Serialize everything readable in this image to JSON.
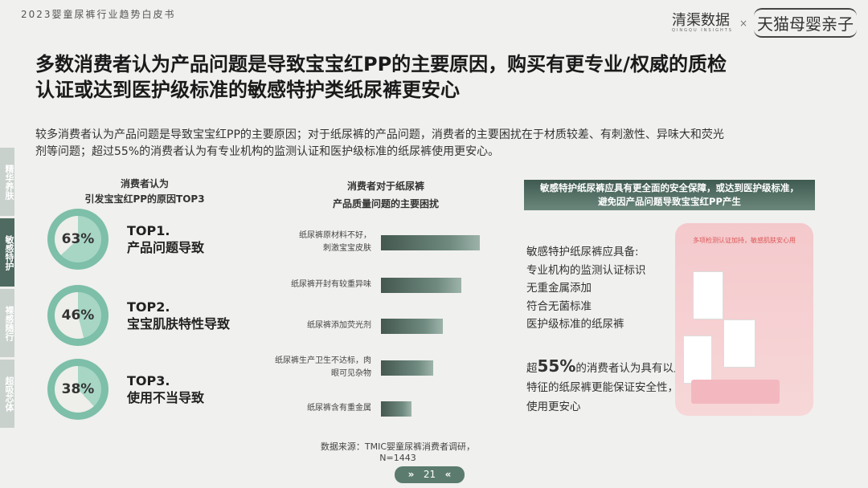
{
  "header": {
    "doc_title": "2023婴童尿裤行业趋势白皮书",
    "logo_left": "清渠数据",
    "logo_left_sub": "QINGQU INSIGHTS",
    "logo_sep": "×",
    "logo_right": "天猫母婴亲子"
  },
  "title": {
    "line1": "多数消费者认为产品问题是导致宝宝红PP的主要原因，购买有更专业/权威的质检",
    "line2": "认证或达到医护级标准的敏感特护类纸尿裤更安心"
  },
  "intro": {
    "line1": "较多消费者认为产品问题是导致宝宝红PP的主要原因；对于纸尿裤的产品问题，消费者的主要困扰在于材质较差、有刺激性、异味大和荧光",
    "line2": "剂等问题；超过55%的消费者认为有专业机构的监测认证和医护级标准的纸尿裤使用更安心。"
  },
  "side_tabs": [
    {
      "label": "精华养肤",
      "active": false
    },
    {
      "label": "敏感特护",
      "active": true
    },
    {
      "label": "裸感随行",
      "active": false
    },
    {
      "label": "超吸芯体",
      "active": false
    }
  ],
  "top3": {
    "title_line1": "消费者认为",
    "title_line2": "引发宝宝红PP的原因TOP3",
    "items": [
      {
        "pct": "63%",
        "value": 63,
        "rank": "TOP1.",
        "label": "产品问题导致"
      },
      {
        "pct": "46%",
        "value": 46,
        "rank": "TOP2.",
        "label": "宝宝肌肤特性导致"
      },
      {
        "pct": "38%",
        "value": 38,
        "rank": "TOP3.",
        "label": "使用不当导致"
      }
    ],
    "ring_color": "#7dbfa9"
  },
  "chart_data": {
    "type": "bar",
    "orientation": "horizontal",
    "title": "消费者对于纸尿裤产品质量问题的主要困扰",
    "title_line1": "消费者对于纸尿裤",
    "title_line2": "产品质量问题的主要困扰",
    "categories": [
      "纸尿裤原材料不好，刺激宝宝皮肤",
      "纸尿裤开封有较重异味",
      "纸尿裤添加荧光剂",
      "纸尿裤生产卫生不达标，肉眼可见杂物",
      "纸尿裤含有重金属"
    ],
    "category_lines": [
      [
        "纸尿裤原材料不好，",
        "刺激宝宝皮肤"
      ],
      [
        "纸尿裤开封有较重异味"
      ],
      [
        "纸尿裤添加荧光剂"
      ],
      [
        "纸尿裤生产卫生不达标，肉",
        "眼可见杂物"
      ],
      [
        "纸尿裤含有重金属"
      ]
    ],
    "values_relative": [
      100,
      81,
      63,
      53,
      31
    ],
    "bar_color": "#4f6a60"
  },
  "source": "数据来源：TMIC婴童尿裤消费者调研，N=1443",
  "right": {
    "banner_line1": "敏感特护纸尿裤应具有更全面的安全保障，或达到医护级标准，",
    "banner_line2": "避免因产品问题导致宝宝红PP产生",
    "features": [
      "敏感特护纸尿裤应具备:",
      "专业机构的监测认证标识",
      "无重金属添加",
      "符合无菌标准",
      "医护级标准的纸尿裤"
    ],
    "stat_prefix": "超",
    "stat_value": "55%",
    "stat_line1": "的消费者认为具有以上",
    "stat_line2": "特征的纸尿裤更能保证安全性，",
    "stat_line3": "使用更安心",
    "image_heading": "多项检测认证加持，敏感肌肤安心用"
  },
  "pager": {
    "prev": "»",
    "page": "21",
    "next": "«"
  }
}
